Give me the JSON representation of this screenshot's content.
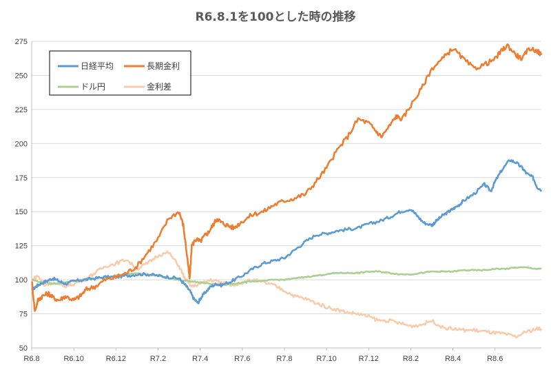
{
  "chart_data": {
    "type": "line",
    "title": "R6.8.1を100とした時の推移",
    "xlabel": "",
    "ylabel": "",
    "ylim": [
      50,
      275
    ],
    "yticks": [
      50,
      75,
      100,
      125,
      150,
      175,
      200,
      225,
      250,
      275
    ],
    "xticks": [
      "R6.8",
      "R6.10",
      "R6.12",
      "R7.2",
      "R7.4",
      "R7.6",
      "R7.8",
      "R7.10",
      "R7.12",
      "R8.2",
      "R8.4",
      "R8.6"
    ],
    "xlim": [
      0,
      24.2
    ],
    "grid": true,
    "legend_position": "top-left",
    "series": [
      {
        "name": "日経平均",
        "color": "#5B9BD5",
        "x": [
          0,
          0.2,
          0.4,
          0.7,
          1,
          1.3,
          1.6,
          2,
          2.5,
          3,
          3.5,
          4,
          4.5,
          5,
          5.5,
          6,
          6.5,
          7,
          7.3,
          7.5,
          7.7,
          7.9,
          8,
          8.2,
          8.5,
          8.8,
          9,
          9.5,
          10,
          10.5,
          11,
          11.5,
          12,
          12.5,
          13,
          13.5,
          14,
          14.5,
          15,
          15.5,
          16,
          16.5,
          17,
          17.5,
          18,
          18.3,
          18.6,
          19,
          19.2,
          19.5,
          19.8,
          20,
          20.3,
          20.5,
          21,
          21.5,
          21.8,
          22,
          22.3,
          22.7,
          23,
          23.3,
          23.5,
          23.8,
          24,
          24.2
        ],
        "y": [
          92,
          95,
          97,
          99,
          101,
          99,
          97,
          99,
          100,
          101,
          102,
          102,
          103,
          104,
          104,
          103,
          102,
          101,
          96,
          92,
          86,
          83,
          86,
          90,
          95,
          97,
          96,
          99,
          103,
          108,
          112,
          114,
          116,
          122,
          128,
          133,
          134,
          136,
          137,
          138,
          141,
          143,
          146,
          150,
          152,
          147,
          142,
          140,
          143,
          147,
          150,
          152,
          155,
          158,
          163,
          170,
          165,
          172,
          180,
          188,
          186,
          182,
          178,
          175,
          168,
          166
        ]
      },
      {
        "name": "長期金利",
        "color": "#ED7D31",
        "x": [
          0,
          0.15,
          0.3,
          0.5,
          0.8,
          1,
          1.3,
          1.6,
          2,
          2.3,
          2.6,
          3,
          3.5,
          4,
          4.5,
          5,
          5.5,
          6,
          6.5,
          7,
          7.2,
          7.4,
          7.5,
          7.6,
          7.8,
          8,
          8.2,
          8.4,
          8.6,
          8.8,
          9,
          9.3,
          9.6,
          10,
          10.5,
          11,
          11.5,
          12,
          12.5,
          13,
          13.5,
          14,
          14.5,
          15,
          15.5,
          16,
          16.3,
          16.6,
          17,
          17.3,
          17.6,
          18,
          18.5,
          19,
          19.5,
          20,
          20.5,
          21,
          21.5,
          22,
          22.3,
          22.6,
          23,
          23.3,
          23.6,
          24,
          24.2
        ],
        "y": [
          100,
          77,
          85,
          88,
          90,
          87,
          85,
          88,
          85,
          88,
          93,
          95,
          100,
          102,
          105,
          110,
          120,
          130,
          145,
          150,
          140,
          115,
          100,
          125,
          130,
          128,
          132,
          135,
          140,
          145,
          142,
          140,
          138,
          143,
          148,
          150,
          155,
          158,
          160,
          163,
          172,
          182,
          195,
          205,
          218,
          215,
          210,
          205,
          213,
          220,
          218,
          228,
          240,
          255,
          262,
          270,
          262,
          255,
          258,
          262,
          268,
          272,
          265,
          262,
          270,
          268,
          265
        ]
      },
      {
        "name": "ドル円",
        "color": "#A9D18E",
        "x": [
          0,
          0.5,
          1,
          1.5,
          2,
          2.5,
          3,
          3.5,
          4,
          4.5,
          5,
          5.5,
          6,
          6.5,
          7,
          7.5,
          8,
          8.5,
          9,
          9.5,
          10,
          10.5,
          11,
          11.5,
          12,
          12.5,
          13,
          13.5,
          14,
          14.5,
          15,
          15.5,
          16,
          16.5,
          17,
          17.5,
          18,
          18.5,
          19,
          19.5,
          20,
          20.5,
          21,
          21.5,
          22,
          22.5,
          23,
          23.5,
          24,
          24.2
        ],
        "y": [
          100,
          98,
          97,
          98,
          99,
          100,
          101,
          102,
          103,
          104,
          105,
          104,
          103,
          101,
          100,
          99,
          98,
          97,
          96,
          97,
          98,
          99,
          99,
          100,
          100,
          101,
          102,
          103,
          104,
          105,
          105,
          105,
          106,
          106,
          105,
          104,
          104,
          105,
          106,
          106,
          106,
          107,
          107,
          107,
          108,
          108,
          109,
          109,
          108,
          108
        ]
      },
      {
        "name": "金利差",
        "color": "#F8CBAD",
        "x": [
          0,
          0.3,
          0.6,
          1,
          1.5,
          2,
          2.5,
          3,
          3.5,
          4,
          4.5,
          5,
          5.5,
          6,
          6.5,
          7,
          7.3,
          7.6,
          8,
          8.5,
          9,
          9.5,
          10,
          10.5,
          11,
          11.5,
          12,
          12.5,
          13,
          13.5,
          14,
          14.5,
          15,
          15.5,
          16,
          16.5,
          17,
          17.5,
          18,
          18.5,
          19,
          19.5,
          20,
          20.5,
          21,
          21.5,
          22,
          22.5,
          23,
          23.5,
          24,
          24.2
        ],
        "y": [
          100,
          103,
          96,
          98,
          95,
          97,
          100,
          105,
          110,
          112,
          115,
          108,
          112,
          118,
          120,
          110,
          100,
          95,
          97,
          100,
          98,
          96,
          98,
          100,
          98,
          96,
          92,
          88,
          86,
          83,
          80,
          78,
          76,
          75,
          73,
          70,
          70,
          68,
          66,
          67,
          70,
          65,
          64,
          63,
          63,
          62,
          61,
          60,
          58,
          62,
          64,
          64
        ]
      }
    ]
  }
}
